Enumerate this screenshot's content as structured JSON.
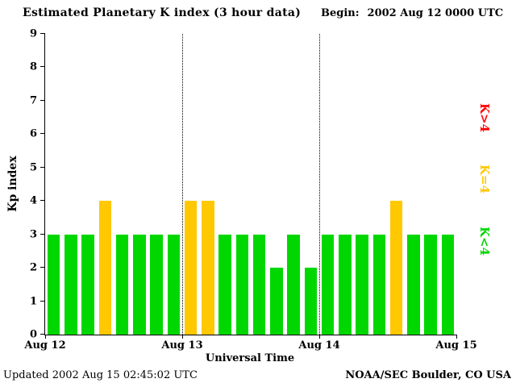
{
  "header": {
    "title": "Estimated Planetary K index (3 hour data)",
    "begin_label": "Begin:",
    "begin_value": "2002 Aug 12 0000 UTC"
  },
  "axes": {
    "ylabel": "Kp index",
    "xlabel": "Universal Time"
  },
  "legend": [
    {
      "label": "K>4",
      "color": "#ff0000"
    },
    {
      "label": "K=4",
      "color": "#ffc800"
    },
    {
      "label": "K<4",
      "color": "#00d700"
    }
  ],
  "footer": {
    "updated": "Updated 2002 Aug 15 02:45:02 UTC",
    "source": "NOAA/SEC Boulder, CO USA"
  },
  "chart_data": {
    "type": "bar",
    "title": "Estimated Planetary K index (3 hour data)",
    "xlabel": "Universal Time",
    "ylabel": "Kp index",
    "ylim": [
      0,
      9
    ],
    "yticks": [
      0,
      1,
      2,
      3,
      4,
      5,
      6,
      7,
      8,
      9
    ],
    "day_labels": [
      "Aug 12",
      "Aug 13",
      "Aug 14",
      "Aug 15"
    ],
    "interval_hours": 3,
    "series": [
      {
        "name": "Kp",
        "values": [
          3,
          3,
          3,
          4,
          3,
          3,
          3,
          3,
          4,
          4,
          3,
          3,
          3,
          2,
          3,
          2,
          3,
          3,
          3,
          3,
          4,
          3,
          3,
          3
        ]
      }
    ],
    "bar_colors": {
      "lt4": "#00d700",
      "eq4": "#ffc800",
      "gt4": "#ff0000"
    },
    "grid": "vertical dotted lines at interior day boundaries",
    "legend_position": "right"
  }
}
